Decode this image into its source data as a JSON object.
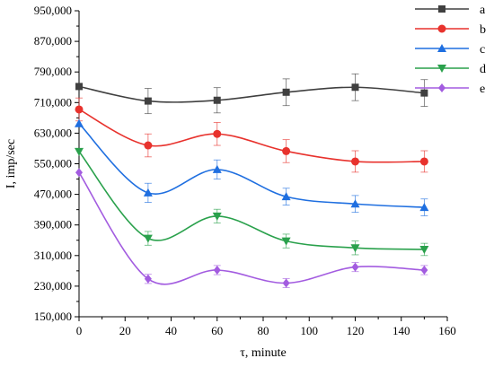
{
  "chart_data": {
    "type": "line",
    "title": "",
    "xlabel": "τ, minute",
    "ylabel": "I, imp/sec",
    "xlim": [
      0,
      160
    ],
    "ylim": [
      150000,
      950000
    ],
    "xticks": [
      0,
      20,
      40,
      60,
      80,
      100,
      120,
      140,
      160
    ],
    "yticks": [
      150000,
      230000,
      310000,
      390000,
      470000,
      550000,
      630000,
      710000,
      790000,
      870000,
      950000
    ],
    "xtick_labels": [
      "0",
      "20",
      "40",
      "60",
      "80",
      "100",
      "120",
      "140",
      "160"
    ],
    "ytick_labels": [
      "150,000",
      "230,000",
      "310,000",
      "390,000",
      "470,000",
      "550,000",
      "630,000",
      "710,000",
      "790,000",
      "870,000",
      "950,000"
    ],
    "grid": false,
    "legend_position": "top-right",
    "x": [
      0,
      30,
      60,
      90,
      120,
      150
    ],
    "series": [
      {
        "name": "a",
        "color": "#404040",
        "marker": "square",
        "values": [
          752000,
          714000,
          716000,
          737000,
          750000,
          735000
        ],
        "errors": [
          0,
          33000,
          33000,
          35000,
          35000,
          35000
        ]
      },
      {
        "name": "b",
        "color": "#e8322d",
        "marker": "circle",
        "values": [
          692000,
          598000,
          628000,
          583000,
          556000,
          556000
        ],
        "errors": [
          30000,
          30000,
          30000,
          30000,
          28000,
          28000
        ]
      },
      {
        "name": "c",
        "color": "#1f6fe0",
        "marker": "triangle-up",
        "values": [
          655000,
          474000,
          535000,
          464000,
          445000,
          436000
        ],
        "errors": [
          0,
          25000,
          25000,
          22000,
          22000,
          22000
        ]
      },
      {
        "name": "d",
        "color": "#2aa14c",
        "marker": "triangle-down",
        "values": [
          582000,
          355000,
          413000,
          348000,
          330000,
          326000
        ],
        "errors": [
          0,
          18000,
          18000,
          18000,
          18000,
          16000
        ]
      },
      {
        "name": "e",
        "color": "#a35ce0",
        "marker": "diamond",
        "values": [
          527000,
          249000,
          272000,
          238000,
          280000,
          272000
        ],
        "errors": [
          0,
          12000,
          12000,
          12000,
          12000,
          12000
        ]
      }
    ]
  }
}
